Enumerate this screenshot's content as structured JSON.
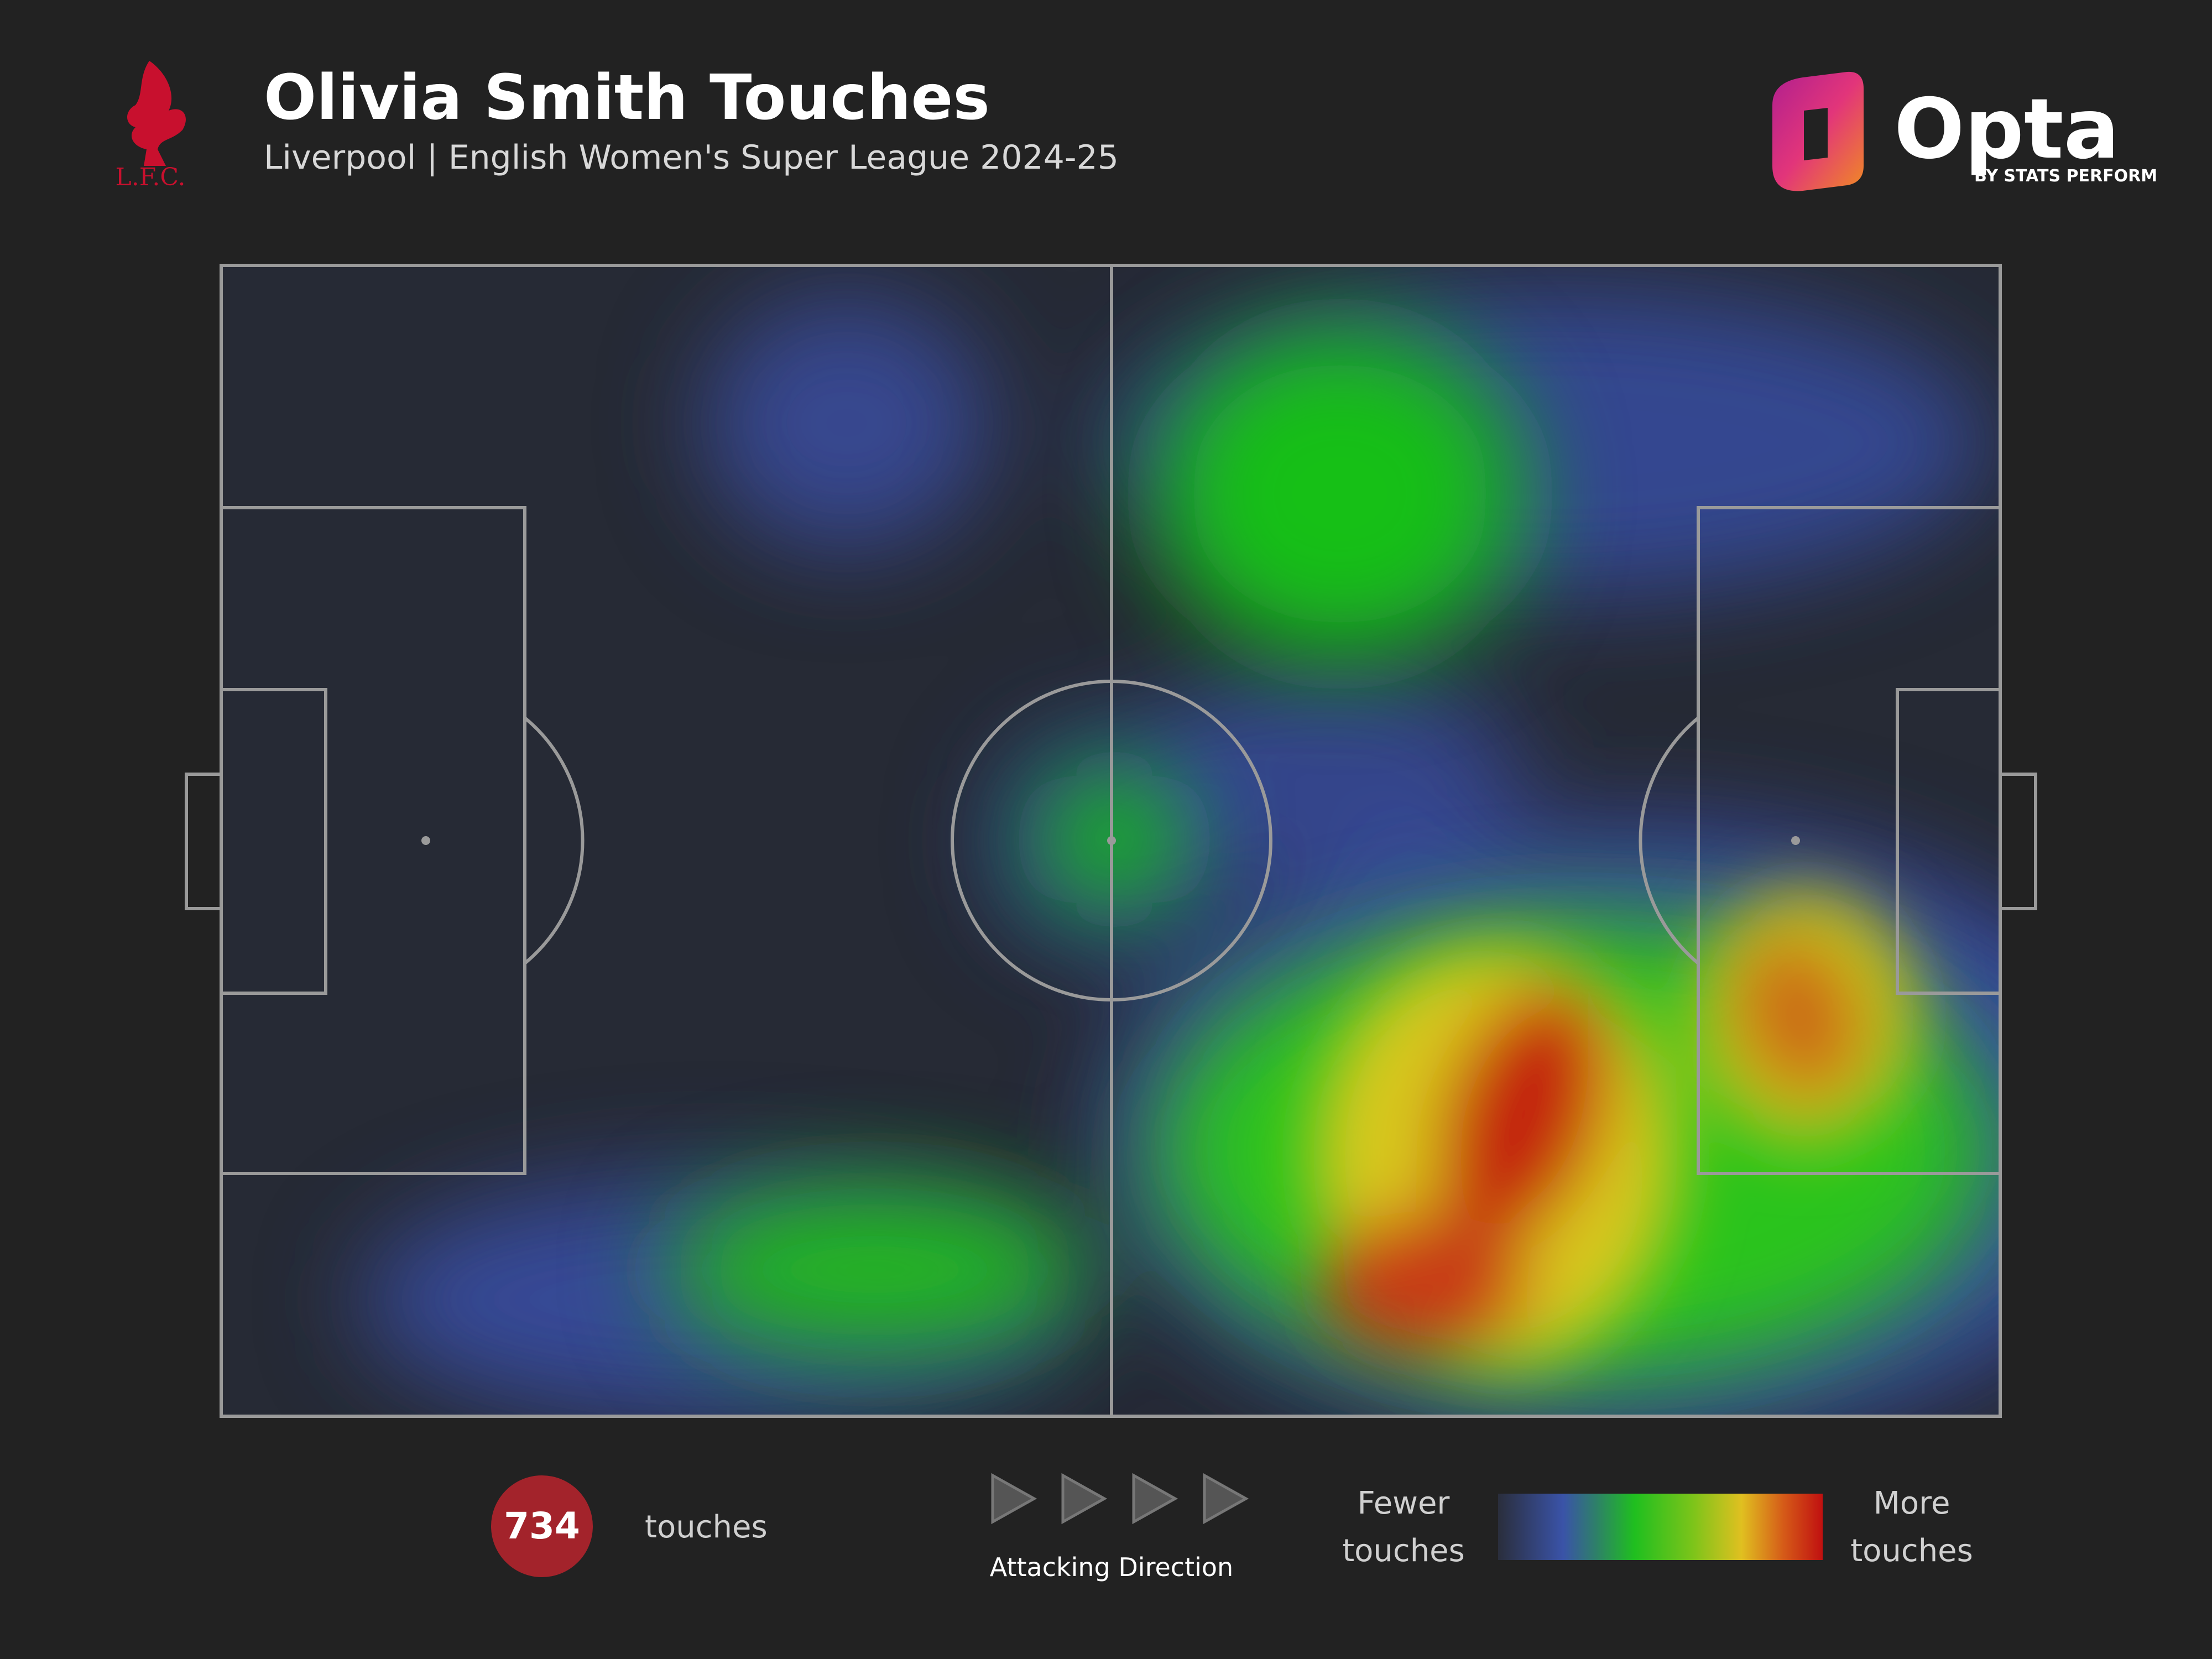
{
  "header": {
    "title": "Olivia Smith Touches",
    "subtitle": "Liverpool | English Women's Super League 2024-25"
  },
  "logos": {
    "club": "L.F.C.",
    "brand": "Opta",
    "brand_tagline": "BY STATS PERFORM"
  },
  "footer": {
    "touches_count": 734,
    "touches_label": "touches",
    "direction_label": "Attacking Direction",
    "legend_low": "Fewer touches",
    "legend_high": "More touches"
  }
}
